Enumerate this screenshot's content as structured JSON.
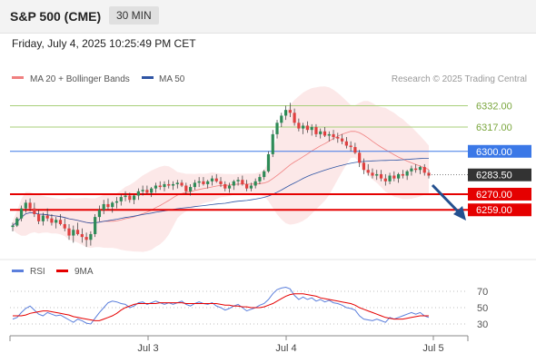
{
  "header": {
    "instrument": "S&P 500 (CME)",
    "timeframe": "30 MIN"
  },
  "timestamp": "Friday, July 4, 2025 10:25:49 PM CET",
  "legend": {
    "bb_label": "MA 20 + Bollinger Bands",
    "ma50_label": "MA 50",
    "credit": "Research © 2025 Trading Central",
    "rsi_label": "RSI",
    "ma9_label": "9MA"
  },
  "colors": {
    "bb": "#f08080",
    "ma50": "#2f55a4",
    "resistance": "#a8cf7a",
    "pivot": "#3b78e7",
    "support": "#e50000",
    "price_tag": "#333333",
    "rsi": "#5b7fdc",
    "rsi_ma": "#e50000",
    "bull": "#2e8b57",
    "bear": "#e04040",
    "arrow": "#24508f"
  },
  "chart_data": [
    {
      "type": "candlestick",
      "title": "S&P 500 (CME) 30 MIN",
      "x_tick_labels": [
        "Jul 3",
        "Jul 4",
        "Jul 5"
      ],
      "ylim": [
        6228,
        6345
      ],
      "levels": [
        {
          "label": "6332.00",
          "value": 6332,
          "kind": "resistance"
        },
        {
          "label": "6317.00",
          "value": 6317,
          "kind": "resistance"
        },
        {
          "label": "6300.00",
          "value": 6300,
          "kind": "pivot"
        },
        {
          "label": "6270.00",
          "value": 6270,
          "kind": "support"
        },
        {
          "label": "6259.00",
          "value": 6259,
          "kind": "support"
        }
      ],
      "last_price": {
        "label": "6283.50",
        "value": 6283.5
      },
      "candles": [
        [
          6247,
          6250,
          6244,
          6248
        ],
        [
          6248,
          6254,
          6247,
          6253
        ],
        [
          6253,
          6262,
          6251,
          6260
        ],
        [
          6260,
          6266,
          6257,
          6264
        ],
        [
          6264,
          6267,
          6258,
          6260
        ],
        [
          6260,
          6264,
          6254,
          6256
        ],
        [
          6256,
          6259,
          6249,
          6251
        ],
        [
          6251,
          6257,
          6248,
          6255
        ],
        [
          6255,
          6260,
          6251,
          6253
        ],
        [
          6253,
          6256,
          6248,
          6250
        ],
        [
          6250,
          6254,
          6246,
          6252
        ],
        [
          6252,
          6256,
          6248,
          6249
        ],
        [
          6249,
          6253,
          6244,
          6246
        ],
        [
          6246,
          6249,
          6238,
          6241
        ],
        [
          6241,
          6248,
          6236,
          6245
        ],
        [
          6245,
          6250,
          6241,
          6242
        ],
        [
          6242,
          6246,
          6236,
          6240
        ],
        [
          6240,
          6243,
          6233,
          6238
        ],
        [
          6238,
          6244,
          6234,
          6242
        ],
        [
          6242,
          6256,
          6240,
          6254
        ],
        [
          6254,
          6262,
          6251,
          6259
        ],
        [
          6259,
          6266,
          6256,
          6263
        ],
        [
          6263,
          6267,
          6259,
          6261
        ],
        [
          6261,
          6265,
          6257,
          6264
        ],
        [
          6264,
          6268,
          6260,
          6265
        ],
        [
          6265,
          6270,
          6262,
          6268
        ],
        [
          6268,
          6272,
          6265,
          6269
        ],
        [
          6269,
          6271,
          6264,
          6266
        ],
        [
          6266,
          6270,
          6263,
          6269
        ],
        [
          6269,
          6274,
          6266,
          6272
        ],
        [
          6272,
          6276,
          6269,
          6273
        ],
        [
          6273,
          6276,
          6270,
          6271
        ],
        [
          6271,
          6275,
          6268,
          6274
        ],
        [
          6274,
          6278,
          6271,
          6276
        ],
        [
          6276,
          6279,
          6273,
          6275
        ],
        [
          6275,
          6279,
          6272,
          6277
        ],
        [
          6277,
          6280,
          6274,
          6276
        ],
        [
          6276,
          6279,
          6273,
          6277
        ],
        [
          6277,
          6280,
          6274,
          6278
        ],
        [
          6278,
          6280,
          6275,
          6276
        ],
        [
          6276,
          6278,
          6270,
          6272
        ],
        [
          6272,
          6277,
          6269,
          6275
        ],
        [
          6275,
          6280,
          6273,
          6278
        ],
        [
          6278,
          6282,
          6275,
          6279
        ],
        [
          6279,
          6282,
          6276,
          6277
        ],
        [
          6277,
          6280,
          6274,
          6279
        ],
        [
          6279,
          6283,
          6276,
          6281
        ],
        [
          6281,
          6284,
          6278,
          6279
        ],
        [
          6279,
          6282,
          6275,
          6277
        ],
        [
          6277,
          6279,
          6272,
          6274
        ],
        [
          6274,
          6278,
          6271,
          6276
        ],
        [
          6276,
          6280,
          6273,
          6279
        ],
        [
          6279,
          6282,
          6276,
          6280
        ],
        [
          6280,
          6283,
          6276,
          6277
        ],
        [
          6277,
          6280,
          6272,
          6274
        ],
        [
          6274,
          6278,
          6272,
          6276
        ],
        [
          6276,
          6281,
          6274,
          6279
        ],
        [
          6279,
          6284,
          6277,
          6282
        ],
        [
          6282,
          6287,
          6280,
          6286
        ],
        [
          6286,
          6300,
          6285,
          6298
        ],
        [
          6298,
          6315,
          6296,
          6312
        ],
        [
          6312,
          6322,
          6309,
          6320
        ],
        [
          6320,
          6327,
          6317,
          6325
        ],
        [
          6325,
          6332,
          6322,
          6329
        ],
        [
          6329,
          6334,
          6324,
          6327
        ],
        [
          6327,
          6330,
          6318,
          6320
        ],
        [
          6320,
          6323,
          6314,
          6316
        ],
        [
          6316,
          6320,
          6312,
          6318
        ],
        [
          6318,
          6321,
          6313,
          6315
        ],
        [
          6315,
          6319,
          6311,
          6317
        ],
        [
          6317,
          6319,
          6310,
          6312
        ],
        [
          6312,
          6316,
          6309,
          6314
        ],
        [
          6314,
          6317,
          6310,
          6311
        ],
        [
          6311,
          6314,
          6307,
          6312
        ],
        [
          6312,
          6315,
          6308,
          6310
        ],
        [
          6310,
          6313,
          6306,
          6309
        ],
        [
          6309,
          6312,
          6305,
          6307
        ],
        [
          6307,
          6310,
          6302,
          6304
        ],
        [
          6304,
          6307,
          6300,
          6303
        ],
        [
          6303,
          6306,
          6298,
          6299
        ],
        [
          6299,
          6301,
          6289,
          6292
        ],
        [
          6292,
          6295,
          6284,
          6287
        ],
        [
          6287,
          6291,
          6283,
          6285
        ],
        [
          6285,
          6288,
          6281,
          6283
        ],
        [
          6283,
          6287,
          6280,
          6284
        ],
        [
          6284,
          6287,
          6279,
          6281
        ],
        [
          6281,
          6284,
          6276,
          6279
        ],
        [
          6279,
          6285,
          6277,
          6283
        ],
        [
          6283,
          6286,
          6279,
          6281
        ],
        [
          6281,
          6285,
          6278,
          6284
        ],
        [
          6284,
          6287,
          6281,
          6283
        ],
        [
          6283,
          6287,
          6280,
          6286
        ],
        [
          6286,
          6290,
          6283,
          6288
        ],
        [
          6288,
          6291,
          6285,
          6287
        ],
        [
          6287,
          6290,
          6284,
          6289
        ],
        [
          6289,
          6291,
          6283,
          6285
        ],
        [
          6285,
          6287,
          6281,
          6283
        ]
      ]
    },
    {
      "type": "line",
      "title": "RSI",
      "y_tick_labels": [
        "70",
        "50",
        "30"
      ],
      "ylim": [
        20,
        80
      ],
      "series": [
        {
          "name": "RSI",
          "values": [
            36,
            38,
            44,
            49,
            52,
            47,
            42,
            40,
            44,
            42,
            40,
            41,
            38,
            35,
            32,
            36,
            34,
            31,
            30,
            37,
            44,
            50,
            56,
            58,
            57,
            55,
            54,
            50,
            52,
            56,
            57,
            54,
            56,
            58,
            56,
            54,
            56,
            54,
            56,
            58,
            54,
            52,
            55,
            57,
            55,
            54,
            56,
            52,
            50,
            47,
            49,
            52,
            54,
            50,
            46,
            48,
            50,
            53,
            55,
            60,
            67,
            72,
            74,
            75,
            73,
            65,
            60,
            63,
            60,
            62,
            58,
            60,
            57,
            59,
            56,
            55,
            53,
            50,
            49,
            47,
            40,
            36,
            35,
            34,
            36,
            34,
            32,
            38,
            36,
            38,
            40,
            42,
            44,
            42,
            44,
            40,
            38
          ]
        },
        {
          "name": "9MA",
          "values": [
            40,
            40,
            40,
            41,
            43,
            44,
            45,
            46,
            46,
            45,
            44,
            43,
            42,
            41,
            39,
            38,
            37,
            36,
            35,
            34,
            34,
            36,
            38,
            40,
            43,
            47,
            50,
            52,
            54,
            55,
            55,
            55,
            55,
            55,
            56,
            56,
            56,
            56,
            56,
            56,
            55,
            55,
            55,
            55,
            55,
            55,
            55,
            55,
            54,
            53,
            53,
            52,
            52,
            51,
            51,
            50,
            50,
            50,
            51,
            53,
            55,
            58,
            61,
            64,
            66,
            67,
            67,
            67,
            66,
            65,
            64,
            62,
            61,
            60,
            59,
            58,
            57,
            56,
            55,
            53,
            50,
            48,
            46,
            44,
            42,
            40,
            38,
            37,
            36,
            36,
            36,
            37,
            38,
            39,
            40,
            40,
            40
          ]
        }
      ]
    }
  ]
}
